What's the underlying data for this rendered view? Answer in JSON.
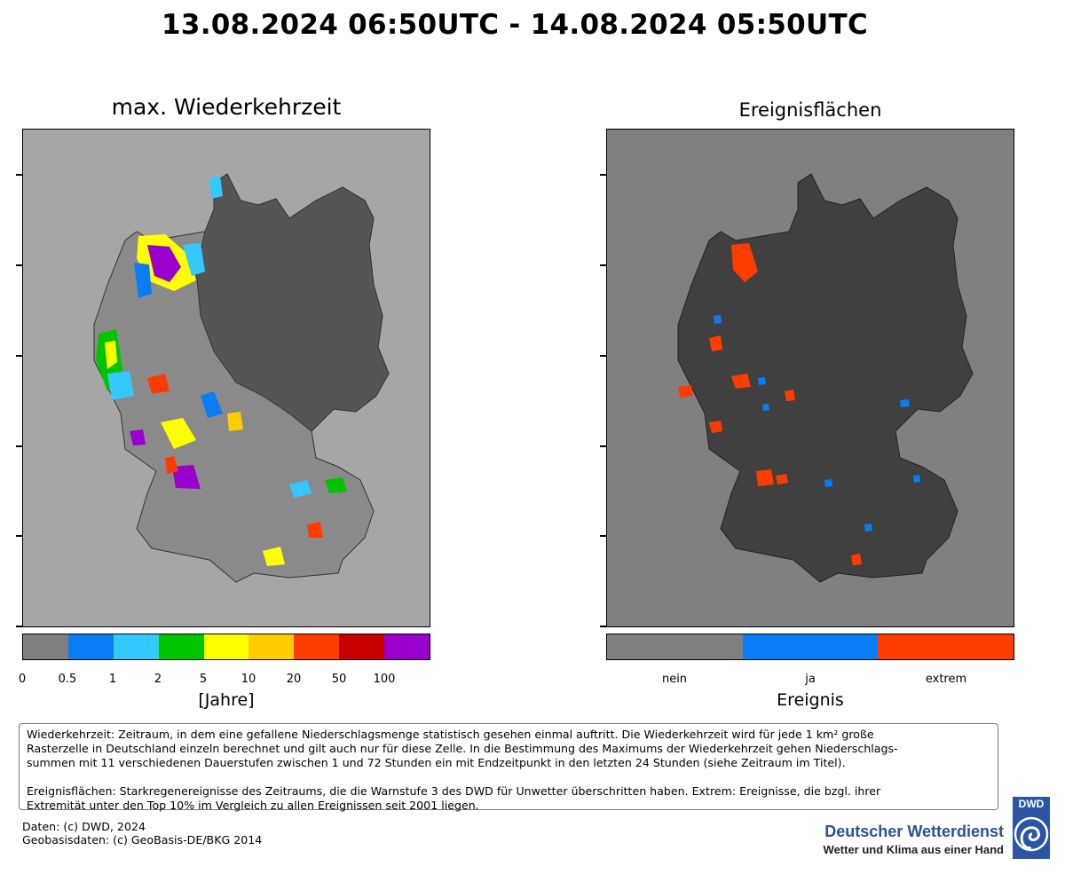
{
  "header": {
    "title": "13.08.2024 06:50UTC - 14.08.2024 05:50UTC"
  },
  "left_panel": {
    "title": "max. Wiederkehrzeit",
    "legend_title": "[Jahre]",
    "legend_ticks": [
      "0",
      "0.5",
      "1",
      "2",
      "5",
      "10",
      "20",
      "50",
      "100"
    ],
    "legend_colors": [
      "#808080",
      "#0a7cf5",
      "#34c8ff",
      "#00c400",
      "#ffff00",
      "#ffcc00",
      "#ff3c00",
      "#c80000",
      "#9900cc"
    ]
  },
  "right_panel": {
    "title": "Ereignisflächen",
    "legend_title": "Ereignis",
    "legend_labels": [
      "nein",
      "ja",
      "extrem"
    ],
    "legend_colors": [
      "#808080",
      "#0a7cf5",
      "#ff3c00"
    ]
  },
  "map_colors": {
    "background_left": "#a6a6a6",
    "land_left": "#8a8a8a",
    "land_east": "#555555",
    "background_right": "#808080",
    "land_right": "#404040"
  },
  "info": {
    "text": "Wiederkehrzeit: Zeitraum, in dem eine gefallene Niederschlagsmenge statistisch gesehen einmal auftritt. Die Wiederkehrzeit wird für jede 1 km² große\n Rasterzelle in Deutschland einzeln berechnet und gilt auch nur für diese Zelle. In die Bestimmung des Maximums der Wiederkehrzeit gehen Niederschlags-\nsummen mit 11 verschiedenen Dauerstufen zwischen 1 und 72 Stunden ein mit Endzeitpunkt in den letzten 24 Stunden (siehe Zeitraum im Titel).\n\nEreignisflächen: Starkregenereignisse des Zeitraums, die die Warnstufe 3 des DWD für Unwetter überschritten  haben. Extrem: Ereignisse, die bzgl. ihrer\nExtremität unter den Top 10% im Vergleich zu allen Ereignissen seit 2001 liegen."
  },
  "footer": {
    "data_source": "Daten: (c) DWD, 2024",
    "geo_source": "Geobasisdaten: (c) GeoBasis-DE/BKG 2014",
    "org_name": "Deutscher Wetterdienst",
    "org_tagline": "Wetter und Klima aus einer Hand",
    "logo_text": "DWD"
  }
}
